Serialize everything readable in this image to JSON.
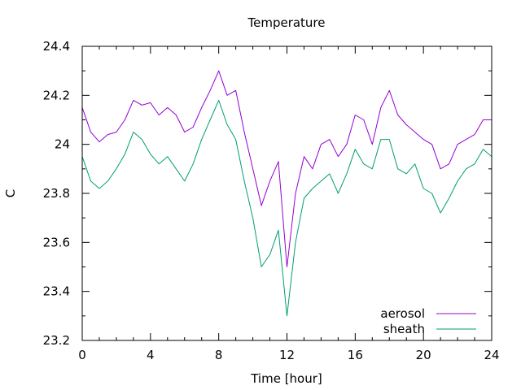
{
  "chart_data": {
    "type": "line",
    "title": "Temperature",
    "xlabel": "Time [hour]",
    "ylabel": "C",
    "xlim": [
      0,
      24
    ],
    "ylim": [
      23.2,
      24.4
    ],
    "x_ticks": [
      0,
      4,
      8,
      12,
      16,
      20,
      24
    ],
    "x_tick_labels": [
      "0",
      "4",
      "8",
      "12",
      "16",
      "20",
      "24"
    ],
    "y_ticks": [
      23.2,
      23.4,
      23.6,
      23.8,
      24.0,
      24.2,
      24.4
    ],
    "y_tick_labels": [
      "23.2",
      "23.4",
      "23.6",
      "23.8",
      "24",
      "24.2",
      "24.4"
    ],
    "grid": false,
    "legend_position": "bottom-right",
    "series": [
      {
        "name": "aerosol",
        "color": "#9400d3",
        "x": [
          0,
          0.5,
          1,
          1.5,
          2,
          2.5,
          3,
          3.5,
          4,
          4.5,
          5,
          5.5,
          6,
          6.5,
          7,
          7.5,
          8,
          8.5,
          9,
          9.5,
          10,
          10.5,
          11,
          11.5,
          12,
          12.5,
          13,
          13.5,
          14,
          14.5,
          15,
          15.5,
          16,
          16.5,
          17,
          17.5,
          18,
          18.5,
          19,
          19.5,
          20,
          20.5,
          21,
          21.5,
          22,
          22.5,
          23,
          23.5,
          24
        ],
        "y": [
          24.15,
          24.05,
          24.01,
          24.04,
          24.05,
          24.1,
          24.18,
          24.16,
          24.17,
          24.12,
          24.15,
          24.12,
          24.05,
          24.07,
          24.15,
          24.22,
          24.3,
          24.2,
          24.22,
          24.05,
          23.9,
          23.75,
          23.85,
          23.93,
          23.5,
          23.8,
          23.95,
          23.9,
          24.0,
          24.02,
          23.95,
          24.0,
          24.12,
          24.1,
          24.0,
          24.15,
          24.22,
          24.12,
          24.08,
          24.05,
          24.02,
          24.0,
          23.9,
          23.92,
          24.0,
          24.02,
          24.04,
          24.1,
          24.1
        ]
      },
      {
        "name": "sheath",
        "color": "#009e73",
        "x": [
          0,
          0.5,
          1,
          1.5,
          2,
          2.5,
          3,
          3.5,
          4,
          4.5,
          5,
          5.5,
          6,
          6.5,
          7,
          7.5,
          8,
          8.5,
          9,
          9.5,
          10,
          10.5,
          11,
          11.5,
          12,
          12.5,
          13,
          13.5,
          14,
          14.5,
          15,
          15.5,
          16,
          16.5,
          17,
          17.5,
          18,
          18.5,
          19,
          19.5,
          20,
          20.5,
          21,
          21.5,
          22,
          22.5,
          23,
          23.5,
          24
        ],
        "y": [
          23.95,
          23.85,
          23.82,
          23.85,
          23.9,
          23.96,
          24.05,
          24.02,
          23.96,
          23.92,
          23.95,
          23.9,
          23.85,
          23.92,
          24.02,
          24.1,
          24.18,
          24.08,
          24.02,
          23.85,
          23.7,
          23.5,
          23.55,
          23.65,
          23.3,
          23.6,
          23.78,
          23.82,
          23.85,
          23.88,
          23.8,
          23.88,
          23.98,
          23.92,
          23.9,
          24.02,
          24.02,
          23.9,
          23.88,
          23.92,
          23.82,
          23.8,
          23.72,
          23.78,
          23.85,
          23.9,
          23.92,
          23.98,
          23.95
        ]
      }
    ]
  }
}
